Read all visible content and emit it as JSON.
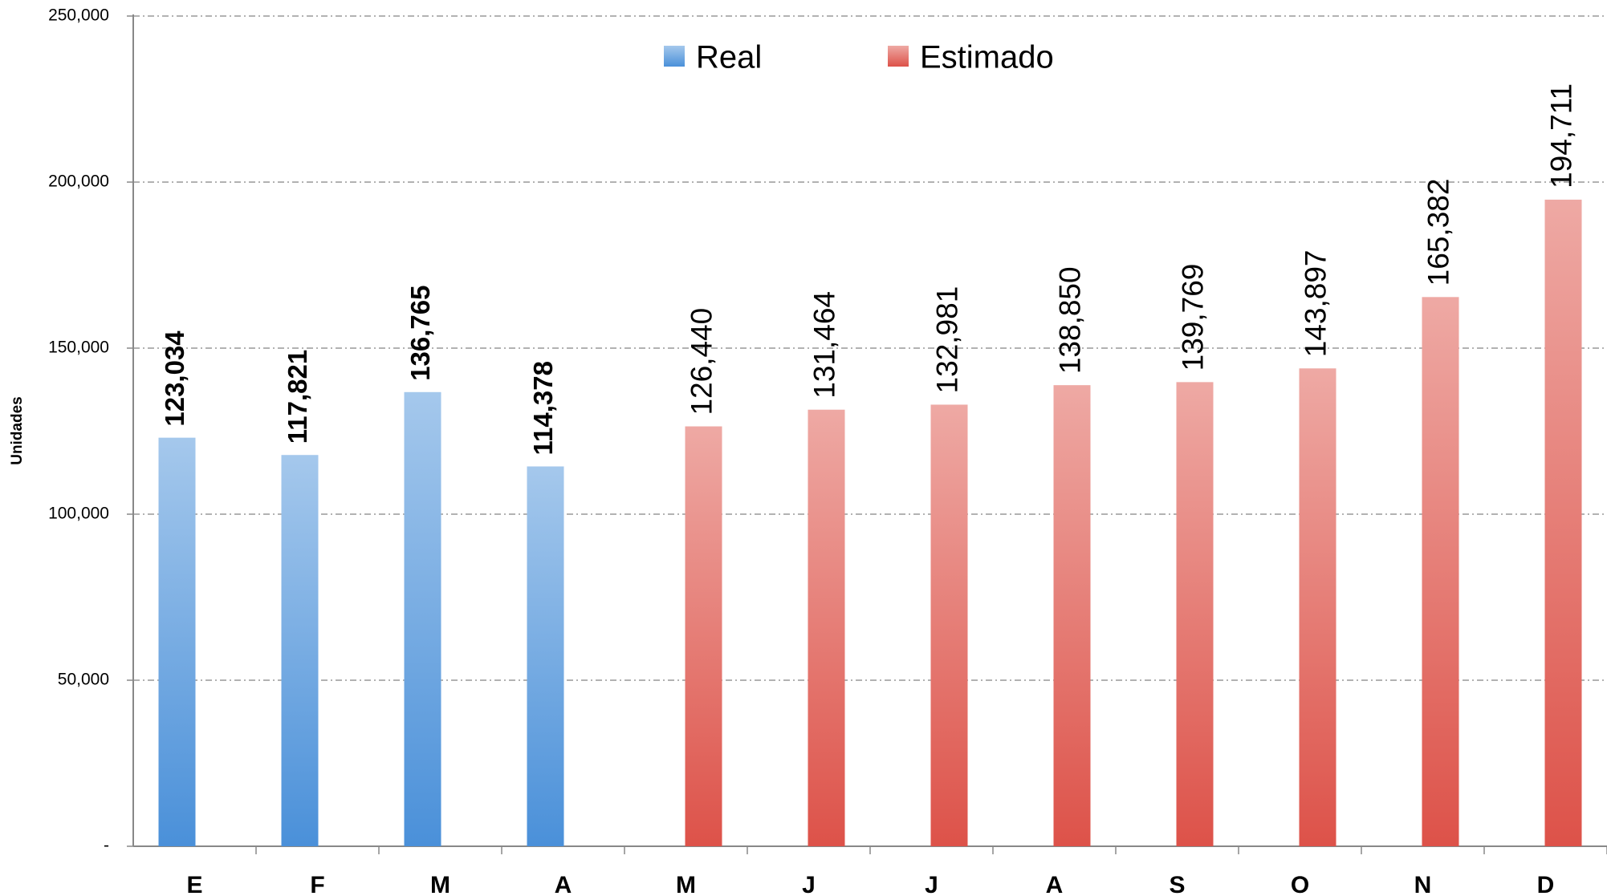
{
  "chart_data": {
    "type": "bar",
    "y_label": "Unidades",
    "categories": [
      "E",
      "F",
      "M",
      "A",
      "M",
      "J",
      "J",
      "A",
      "S",
      "O",
      "N",
      "D"
    ],
    "series": [
      {
        "name": "Real",
        "color": "#4a90d9",
        "values": [
          123034,
          117821,
          136765,
          114378,
          null,
          null,
          null,
          null,
          null,
          null,
          null,
          null
        ],
        "value_labels": [
          "123,034",
          "117,821",
          "136,765",
          "114,378",
          null,
          null,
          null,
          null,
          null,
          null,
          null,
          null
        ]
      },
      {
        "name": "Estimado",
        "color": "#dd5249",
        "values": [
          null,
          null,
          null,
          null,
          126440,
          131464,
          132981,
          138850,
          139769,
          143897,
          165382,
          194711
        ],
        "value_labels": [
          null,
          null,
          null,
          null,
          "126,440",
          "131,464",
          "132,981",
          "138,850",
          "139,769",
          "143,897",
          "165,382",
          "194,711"
        ]
      }
    ],
    "ylim": [
      0,
      250000
    ],
    "yticks": [
      {
        "value": 0,
        "label": "-"
      },
      {
        "value": 50000,
        "label": "50,000"
      },
      {
        "value": 100000,
        "label": "100,000"
      },
      {
        "value": 150000,
        "label": "150,000"
      },
      {
        "value": 200000,
        "label": "200,000"
      },
      {
        "value": 250000,
        "label": "250,000"
      }
    ],
    "grid": true,
    "legend": "top"
  }
}
